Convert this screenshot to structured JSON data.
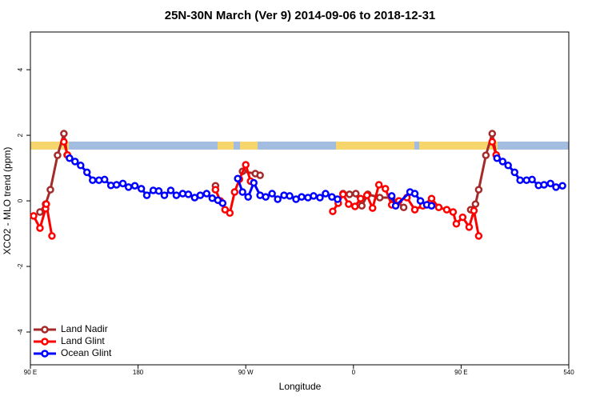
{
  "chart_data": {
    "type": "line",
    "title": "25N-30N March (Ver 9)   2014-09-06 to 2018-12-31",
    "xlabel": "Longitude",
    "ylabel": "XCO2 - MLO trend (ppm)",
    "xlim": [
      90,
      540
    ],
    "ylim": [
      -5,
      5.15
    ],
    "xticks": [
      {
        "value": 90,
        "label": "90 E"
      },
      180,
      {
        "value": 270,
        "label": "90 W"
      },
      {
        "value": 360,
        "label": "0"
      },
      {
        "value": 450,
        "label": "90 E"
      },
      540
    ],
    "yticks": [
      -4,
      -2,
      0,
      2,
      4
    ],
    "legend": "bottomleft",
    "series": [
      {
        "name": "Land Nadir",
        "color": "#a52a2a",
        "x": [
          98,
          102.7,
          106.7,
          112.7,
          118,
          120.7,
          null,
          244.7,
          null,
          267.3,
          278,
          282,
          null,
          351.3,
          356.7,
          362,
          367,
          372,
          382,
          392,
          402,
          null,
          458,
          462,
          464.7,
          470.7,
          476,
          479.3
        ],
        "values": [
          -0.34,
          -0.1,
          0.34,
          1.39,
          2.05,
          1.4,
          null,
          0.46,
          null,
          0.9,
          0.83,
          0.78,
          null,
          0.22,
          0.2,
          0.22,
          -0.15,
          0.2,
          0.1,
          0.1,
          -0.2,
          null,
          -0.27,
          -0.1,
          0.34,
          1.39,
          2.05,
          1.4
        ]
      },
      {
        "name": "Land Glint",
        "color": "#ff0000",
        "x": [
          92.7,
          98,
          102.7,
          103.3,
          108,
          null,
          118,
          121,
          null,
          244.7,
          248.7,
          252.7,
          256.7,
          260.7,
          264.7,
          270,
          274,
          null,
          342.7,
          347.3,
          351.3,
          356,
          361.3,
          366,
          371.3,
          376,
          381.3,
          386.7,
          392,
          398,
          404.7,
          411.3,
          418,
          425.3,
          431.3,
          438,
          443.3,
          446,
          451.3,
          456.7,
          460.7,
          464.7,
          null,
          476,
          479.3
        ],
        "values": [
          -0.46,
          -0.83,
          -0.24,
          -0.1,
          -1.07,
          null,
          1.8,
          1.4,
          null,
          0.34,
          0.0,
          -0.27,
          -0.37,
          0.27,
          0.66,
          1.1,
          0.6,
          null,
          -0.32,
          -0.07,
          0.2,
          -0.1,
          -0.17,
          0.07,
          0.17,
          -0.22,
          0.49,
          0.37,
          -0.12,
          0.0,
          0.1,
          -0.27,
          -0.15,
          0.07,
          -0.2,
          -0.27,
          -0.34,
          -0.7,
          -0.5,
          -0.8,
          -0.3,
          -1.07,
          null,
          1.8,
          1.4
        ]
      },
      {
        "name": "Ocean Glint",
        "color": "#0000ff",
        "x": [
          122.7,
          127.3,
          132,
          137.3,
          142,
          147.3,
          152,
          157.3,
          162,
          167.3,
          172,
          177.3,
          182.7,
          187.3,
          192.7,
          197.3,
          202,
          207.3,
          212,
          217.3,
          222,
          227.3,
          232,
          237.3,
          242,
          246.7,
          250.7,
          null,
          263.3,
          267.3,
          272,
          276.7,
          282,
          286.7,
          292,
          296.7,
          302,
          306.7,
          312,
          316.7,
          322,
          326.7,
          332,
          336.7,
          342,
          346.7,
          null,
          392,
          395.3,
          407.3,
          411.3,
          416,
          421.3,
          425.3,
          null,
          480,
          484.7,
          489.3,
          494.7,
          499.3,
          504.7,
          509.3,
          514.7,
          519.3,
          524.7,
          529.3,
          534.7
        ],
        "values": [
          1.3,
          1.2,
          1.08,
          0.87,
          0.63,
          0.63,
          0.65,
          0.47,
          0.49,
          0.53,
          0.42,
          0.46,
          0.37,
          0.17,
          0.32,
          0.3,
          0.17,
          0.32,
          0.17,
          0.22,
          0.2,
          0.1,
          0.17,
          0.22,
          0.08,
          0.02,
          -0.07,
          null,
          0.68,
          0.27,
          0.12,
          0.55,
          0.17,
          0.12,
          0.22,
          0.05,
          0.17,
          0.15,
          0.05,
          0.12,
          0.1,
          0.15,
          0.1,
          0.22,
          0.12,
          0.05,
          null,
          0.15,
          -0.15,
          0.27,
          0.22,
          0.0,
          -0.12,
          -0.15,
          null,
          1.3,
          1.2,
          1.08,
          0.87,
          0.63,
          0.63,
          0.65,
          0.47,
          0.49,
          0.53,
          0.42,
          0.46
        ]
      }
    ]
  }
}
